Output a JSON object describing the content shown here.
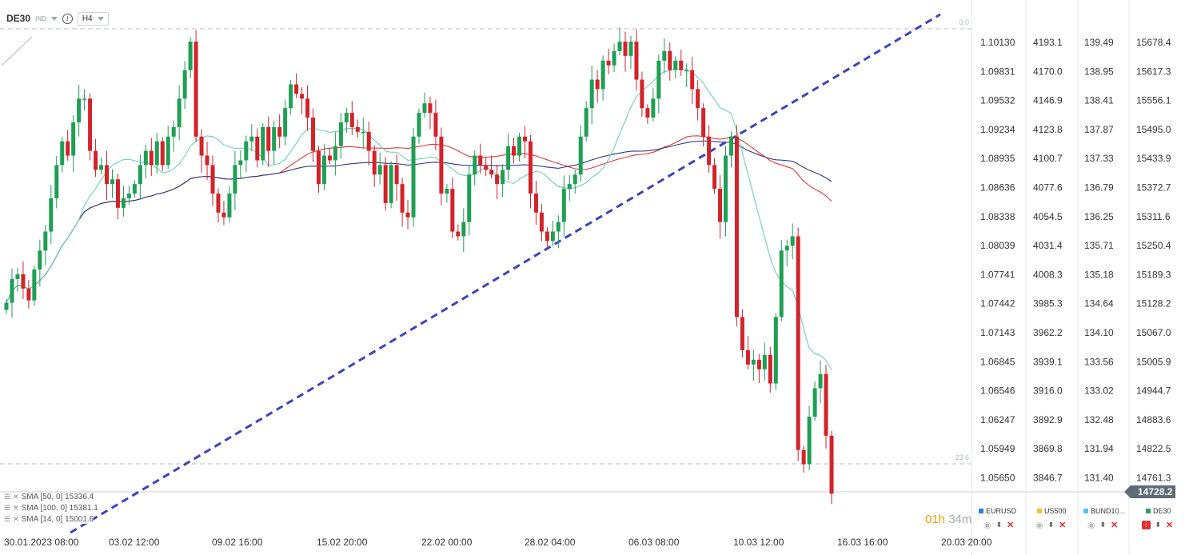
{
  "header": {
    "symbol": "DE30",
    "symbol_type": "IND",
    "timeframe": "H4"
  },
  "price_tag": "14728.2",
  "fib_levels": [
    {
      "label": "0.0"
    },
    {
      "label": "23.6"
    }
  ],
  "indicators": [
    {
      "label": "SMA [50, 0] 15336.4",
      "color": "#e53935"
    },
    {
      "label": "SMA [100, 0] 15381.1",
      "color": "#2e3a8c"
    },
    {
      "label": "SMA [14, 0] 15001.6",
      "color": "#6fd1b4"
    }
  ],
  "timer": {
    "hours": "01h",
    "minutes": "34m"
  },
  "legend": [
    {
      "name": "EURUSD",
      "color": "#1e88e5"
    },
    {
      "name": "US500",
      "color": "#fbc02d"
    },
    {
      "name": "BUND10...",
      "color": "#4fc3f7"
    },
    {
      "name": "DE30",
      "color": "#2e9e5b"
    }
  ],
  "chart_data": {
    "type": "candlestick",
    "symbol": "DE30",
    "timeframe": "H4",
    "x_ticks": [
      "30.01.2023  08:00",
      "03.02  12:00",
      "09.02  16:00",
      "15.02  20:00",
      "22.02  00:00",
      "28.02  04:00",
      "06.03  08:00",
      "10.03  12:00",
      "16.03  16:00",
      "20.03  20:00"
    ],
    "y_axes": [
      {
        "name": "EURUSD",
        "ticks": [
          "1.10130",
          "1.09831",
          "1.09532",
          "1.09234",
          "1.08935",
          "1.08636",
          "1.08338",
          "1.08039",
          "1.07741",
          "1.07442",
          "1.07143",
          "1.06845",
          "1.06546",
          "1.06247",
          "1.05949",
          "1.05650"
        ]
      },
      {
        "name": "US500",
        "ticks": [
          "4193.1",
          "4170.0",
          "4146.9",
          "4123.8",
          "4100.7",
          "4077.6",
          "4054.5",
          "4031.4",
          "4008.3",
          "3985.3",
          "3962.2",
          "3939.1",
          "3916.0",
          "3892.9",
          "3869.8",
          "3846.7"
        ]
      },
      {
        "name": "BUND10Y",
        "ticks": [
          "139.49",
          "138.95",
          "138.41",
          "137.87",
          "137.33",
          "136.79",
          "136.25",
          "135.71",
          "135.18",
          "134.64",
          "134.10",
          "133.56",
          "133.02",
          "132.48",
          "131.94",
          "131.40"
        ]
      },
      {
        "name": "DE30",
        "ticks": [
          "15678.4",
          "15617.3",
          "15556.1",
          "15495.0",
          "15433.9",
          "15372.7",
          "15311.6",
          "15250.4",
          "15189.3",
          "15128.2",
          "15067.0",
          "15005.9",
          "14944.7",
          "14883.6",
          "14822.5",
          "14761.3"
        ]
      }
    ],
    "ylim_DE30": [
      14680,
      15720
    ],
    "close_series": [
      15130,
      15180,
      15190,
      15160,
      15135,
      15200,
      15240,
      15280,
      15350,
      15420,
      15470,
      15440,
      15510,
      15560,
      15560,
      15450,
      15410,
      15420,
      15380,
      15390,
      15330,
      15350,
      15360,
      15380,
      15420,
      15450,
      15420,
      15470,
      15420,
      15480,
      15500,
      15560,
      15620,
      15680,
      15480,
      15440,
      15420,
      15360,
      15320,
      15310,
      15360,
      15420,
      15430,
      15470,
      15480,
      15430,
      15500,
      15450,
      15500,
      15480,
      15540,
      15590,
      15570,
      15560,
      15520,
      15450,
      15380,
      15440,
      15430,
      15460,
      15510,
      15530,
      15500,
      15490,
      15490,
      15450,
      15400,
      15420,
      15340,
      15420,
      15380,
      15320,
      15310,
      15480,
      15530,
      15550,
      15530,
      15480,
      15360,
      15370,
      15280,
      15270,
      15300,
      15400,
      15440,
      15420,
      15410,
      15400,
      15380,
      15410,
      15460,
      15440,
      15480,
      15470,
      15360,
      15320,
      15280,
      15260,
      15280,
      15300,
      15370,
      15380,
      15400,
      15480,
      15540,
      15600,
      15580,
      15640,
      15630,
      15660,
      15680,
      15650,
      15680,
      15600,
      15540,
      15520,
      15560,
      15640,
      15660,
      15620,
      15640,
      15620,
      15620,
      15580,
      15540,
      15480,
      15420,
      15370,
      15300,
      15440,
      15480,
      15100,
      15030,
      15000,
      15010,
      14990,
      15020,
      14960,
      15100,
      15240,
      15250,
      15270,
      14820,
      14790,
      14890,
      14950,
      14980,
      14850,
      14728
    ]
  }
}
